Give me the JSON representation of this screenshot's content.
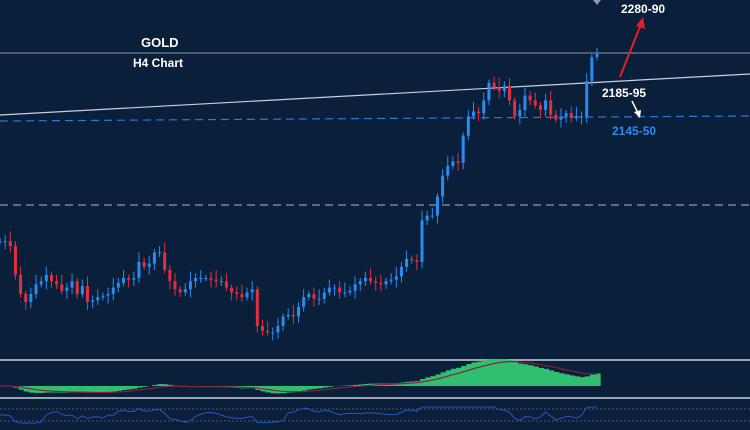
{
  "chart_data": {
    "type": "candlestick",
    "title": "GOLD",
    "subtitle": "H4 Chart",
    "grid": false,
    "colors": {
      "up": "#2a8cf0",
      "down": "#e0303f",
      "background": "#0a1f3a",
      "histogram": "#2fbf6f",
      "signal": "#8a2040",
      "oscillator": "#2a55c0"
    },
    "closes": [
      2073,
      2073,
      2070,
      2052,
      2040,
      2035,
      2040,
      2046,
      2048,
      2052,
      2048,
      2046,
      2042,
      2044,
      2048,
      2040,
      2045,
      2035,
      2036,
      2038,
      2039,
      2040,
      2044,
      2047,
      2050,
      2049,
      2050,
      2060,
      2057,
      2059,
      2066,
      2066,
      2055,
      2048,
      2043,
      2041,
      2043,
      2048,
      2050,
      2050,
      2050,
      2049,
      2048,
      2048,
      2044,
      2041,
      2040,
      2038,
      2041,
      2043,
      2020,
      2017,
      2016,
      2016,
      2020,
      2026,
      2027,
      2026,
      2032,
      2038,
      2040,
      2037,
      2037,
      2041,
      2044,
      2044,
      2041,
      2041,
      2042,
      2046,
      2048,
      2050,
      2048,
      2047,
      2046,
      2048,
      2049,
      2051,
      2057,
      2062,
      2061,
      2060,
      2086,
      2089,
      2089,
      2101,
      2114,
      2120,
      2123,
      2122,
      2139,
      2151,
      2154,
      2153,
      2161,
      2172,
      2169,
      2167,
      2170,
      2161,
      2151,
      2155,
      2164,
      2161,
      2158,
      2155,
      2161,
      2152,
      2149,
      2151,
      2153,
      2150,
      2151,
      2151,
      2173,
      2188,
      2190
    ],
    "levels": [
      {
        "label": "2280-90",
        "role": "target",
        "color": "#ffffff"
      },
      {
        "label": "2185-95",
        "role": "resistance",
        "color": "#ffffff"
      },
      {
        "label": "2145-50",
        "role": "support",
        "color": "#2a8cf0"
      }
    ],
    "arrows": [
      {
        "to": "2280-90",
        "color": "#e0202a"
      },
      {
        "to": "2145-50",
        "color": "#ffffff"
      }
    ]
  }
}
